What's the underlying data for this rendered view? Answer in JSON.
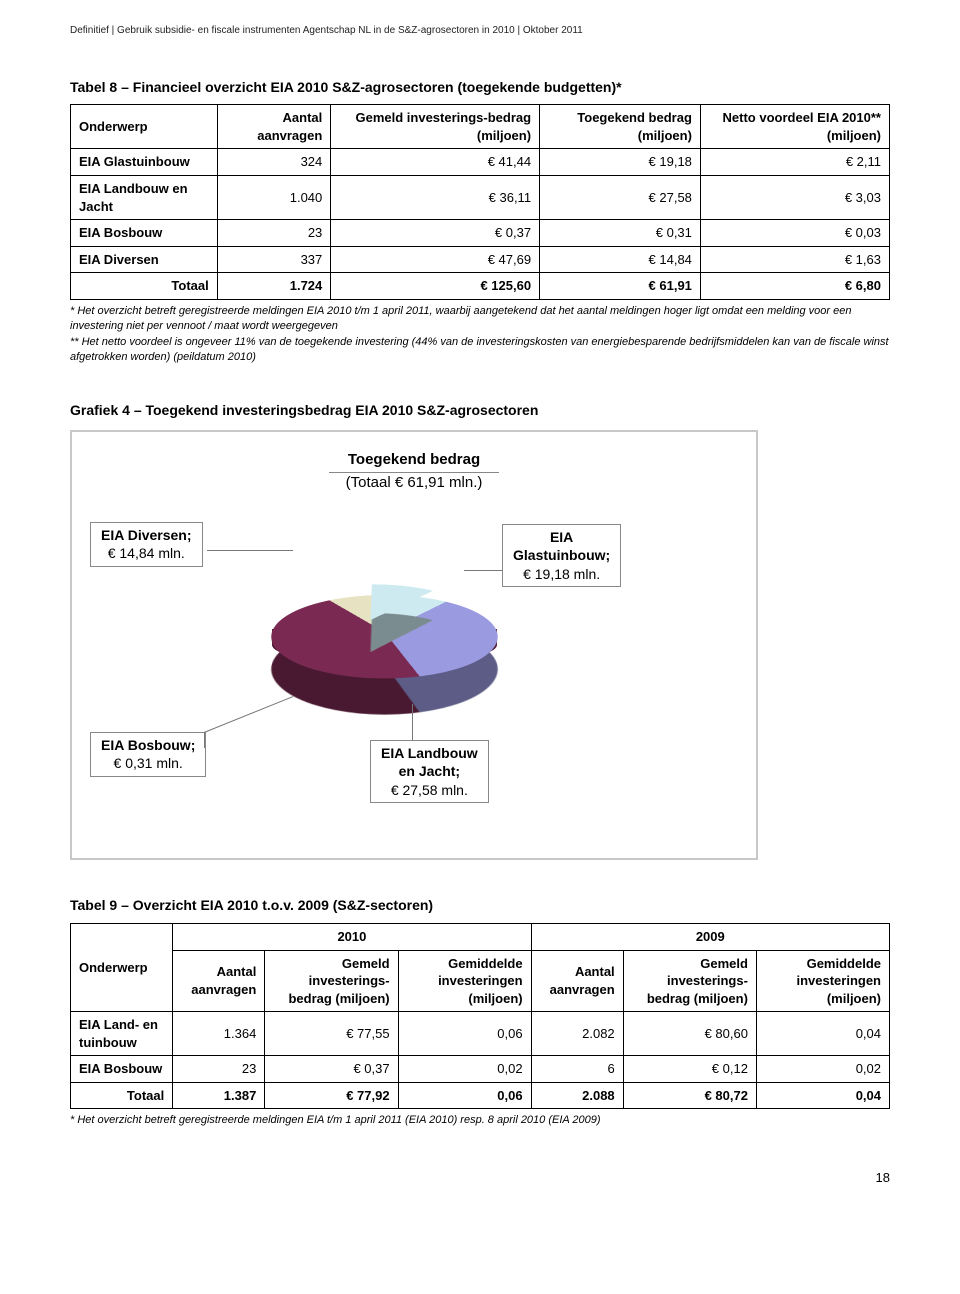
{
  "running_header": "Definitief | Gebruik subsidie- en fiscale instrumenten Agentschap NL in de S&Z-agrosectoren in 2010 | Oktober 2011",
  "page_number": "18",
  "table8": {
    "caption": "Tabel 8 – Financieel overzicht EIA 2010 S&Z-agrosectoren (toegekende budgetten)*",
    "columns": {
      "c0": "Onderwerp",
      "c1": "Aantal aanvragen",
      "c2": "Gemeld investerings-bedrag (miljoen)",
      "c3": "Toegekend bedrag (miljoen)",
      "c4": "Netto voordeel EIA 2010** (miljoen)"
    },
    "rows": [
      {
        "name": "EIA Glastuinbouw",
        "n": "324",
        "gemeld": "€ 41,44",
        "toeg": "€ 19,18",
        "netto": "€ 2,11"
      },
      {
        "name": "EIA Landbouw en Jacht",
        "n": "1.040",
        "gemeld": "€ 36,11",
        "toeg": "€ 27,58",
        "netto": "€ 3,03"
      },
      {
        "name": "EIA Bosbouw",
        "n": "23",
        "gemeld": "€ 0,37",
        "toeg": "€ 0,31",
        "netto": "€ 0,03"
      },
      {
        "name": "EIA Diversen",
        "n": "337",
        "gemeld": "€ 47,69",
        "toeg": "€ 14,84",
        "netto": "€ 1,63"
      }
    ],
    "total": {
      "label": "Totaal",
      "n": "1.724",
      "gemeld": "€ 125,60",
      "toeg": "€ 61,91",
      "netto": "€ 6,80"
    },
    "footnotes": "* Het overzicht betreft geregistreerde meldingen EIA 2010 t/m 1 april 2011, waarbij aangetekend dat het aantal meldingen hoger ligt omdat een melding voor een investering niet per vennoot / maat wordt weergegeven\n** Het netto voordeel is ongeveer 11% van de toegekende investering (44% van de investeringskosten van energiebesparende bedrijfsmiddelen kan van de fiscale winst afgetrokken worden) (peildatum 2010)"
  },
  "chart": {
    "caption": "Grafiek 4 – Toegekend investeringsbedrag EIA 2010 S&Z-agrosectoren",
    "title_line1": "Toegekend bedrag",
    "title_line2": "(Totaal € 61,91 mln.)",
    "type": "3d-pie-exploded",
    "series": [
      {
        "label_line1": "EIA Diversen;",
        "label_line2": "€ 14,84 mln.",
        "value": 14.84,
        "color": "#cdeaf0"
      },
      {
        "label_line1": "EIA",
        "label_line2": "Glastuinbouw;",
        "label_line3": "€ 19,18 mln.",
        "value": 19.18,
        "color": "#9a9ae0"
      },
      {
        "label_line1": "EIA Landbouw",
        "label_line2": "en Jacht;",
        "label_line3": "€ 27,58 mln.",
        "value": 27.58,
        "color": "#7a2a52"
      },
      {
        "label_line1": "EIA Bosbouw;",
        "label_line2": "€ 0,31 mln.",
        "value": 0.31,
        "color": "#e7e2c2"
      }
    ],
    "title_fontsize": 15,
    "label_fontsize": 14,
    "background_color": "#ffffff",
    "border_color": "#c8c8c8",
    "angle_start_deg": -40,
    "exploded_index": 0,
    "tilt_deg": 62
  },
  "table9": {
    "caption": "Tabel 9 – Overzicht EIA 2010 t.o.v. 2009 (S&Z-sectoren)",
    "year_a": "2010",
    "year_b": "2009",
    "columns": {
      "c0": "Onderwerp",
      "c1": "Aantal aanvragen",
      "c2": "Gemeld investerings-bedrag (miljoen)",
      "c3": "Gemiddelde investeringen (miljoen)",
      "c4": "Aantal aanvragen",
      "c5": "Gemeld investerings-bedrag (miljoen)",
      "c6": "Gemiddelde investeringen (miljoen)"
    },
    "rows": [
      {
        "name": "EIA Land- en tuinbouw",
        "a_n": "1.364",
        "a_g": "€ 77,55",
        "a_m": "0,06",
        "b_n": "2.082",
        "b_g": "€ 80,60",
        "b_m": "0,04"
      },
      {
        "name": "EIA Bosbouw",
        "a_n": "23",
        "a_g": "€ 0,37",
        "a_m": "0,02",
        "b_n": "6",
        "b_g": "€ 0,12",
        "b_m": "0,02"
      }
    ],
    "total": {
      "label": "Totaal",
      "a_n": "1.387",
      "a_g": "€ 77,92",
      "a_m": "0,06",
      "b_n": "2.088",
      "b_g": "€ 80,72",
      "b_m": "0,04"
    },
    "footnotes": "* Het overzicht betreft geregistreerde meldingen EIA t/m 1 april 2011 (EIA 2010) resp. 8 april 2010 (EIA 2009)"
  }
}
